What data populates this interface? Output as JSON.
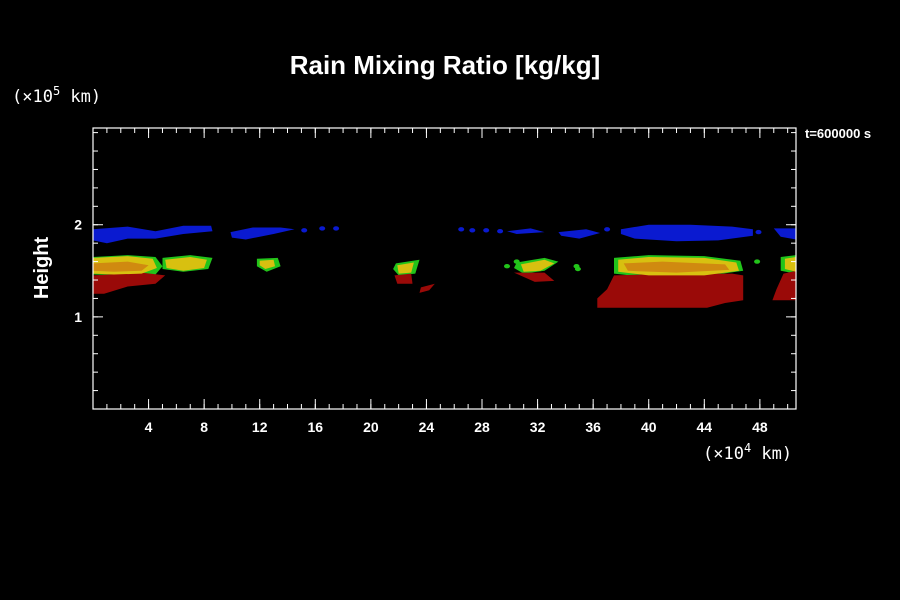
{
  "chart_data": {
    "type": "heatmap",
    "title": "Rain Mixing Ratio [kg/kg]",
    "time_label": "t=600000 s",
    "xlabel": "",
    "ylabel": "Height",
    "x_unit_label": "(×10",
    "x_unit_exp": "4",
    "x_unit_suffix": " km)",
    "y_unit_label": "(×10",
    "y_unit_exp": "5",
    "y_unit_suffix": " km)",
    "xlim": [
      0,
      50.6
    ],
    "ylim": [
      0,
      3.05
    ],
    "x_ticks": [
      4,
      8,
      12,
      16,
      20,
      24,
      28,
      32,
      36,
      40,
      44,
      48
    ],
    "y_ticks": [
      1,
      2
    ],
    "x_minor_step": 1,
    "y_minor_step": 0.2,
    "colors": {
      "blue": "#0a1ad0",
      "green": "#22c41a",
      "yellow": "#d8c010",
      "orange": "#d08a10",
      "red": "#9a0a08"
    },
    "regions": [
      {
        "level": "blue",
        "points": [
          [
            0.0,
            1.95
          ],
          [
            2.5,
            1.98
          ],
          [
            4.5,
            1.93
          ],
          [
            6.5,
            1.99
          ],
          [
            8.5,
            1.99
          ],
          [
            8.6,
            1.93
          ],
          [
            6.5,
            1.9
          ],
          [
            4.5,
            1.85
          ],
          [
            2.5,
            1.85
          ],
          [
            1.0,
            1.8
          ],
          [
            0.0,
            1.83
          ]
        ]
      },
      {
        "level": "blue",
        "points": [
          [
            9.9,
            1.92
          ],
          [
            11.5,
            1.97
          ],
          [
            13.5,
            1.97
          ],
          [
            14.5,
            1.95
          ],
          [
            13.0,
            1.9
          ],
          [
            11.0,
            1.84
          ],
          [
            10.0,
            1.86
          ]
        ]
      },
      {
        "level": "blue",
        "points": [
          [
            29.8,
            1.93
          ],
          [
            31.5,
            1.96
          ],
          [
            32.5,
            1.92
          ],
          [
            30.5,
            1.9
          ]
        ]
      },
      {
        "level": "blue",
        "points": [
          [
            33.5,
            1.92
          ],
          [
            35.5,
            1.95
          ],
          [
            36.5,
            1.91
          ],
          [
            35.0,
            1.85
          ],
          [
            33.7,
            1.88
          ]
        ]
      },
      {
        "level": "blue",
        "points": [
          [
            38.0,
            1.95
          ],
          [
            40.0,
            2.0
          ],
          [
            43.0,
            2.0
          ],
          [
            46.0,
            1.98
          ],
          [
            47.5,
            1.95
          ],
          [
            47.5,
            1.88
          ],
          [
            45.0,
            1.83
          ],
          [
            42.0,
            1.82
          ],
          [
            39.0,
            1.85
          ],
          [
            38.0,
            1.9
          ]
        ]
      },
      {
        "level": "blue",
        "points": [
          [
            49.0,
            1.96
          ],
          [
            50.6,
            1.96
          ],
          [
            50.6,
            1.84
          ],
          [
            49.5,
            1.87
          ]
        ]
      },
      {
        "level": "green",
        "points": [
          [
            0.0,
            1.65
          ],
          [
            2.5,
            1.67
          ],
          [
            4.5,
            1.65
          ],
          [
            5.0,
            1.55
          ],
          [
            4.5,
            1.46
          ],
          [
            2.0,
            1.45
          ],
          [
            0.0,
            1.46
          ]
        ]
      },
      {
        "level": "green",
        "points": [
          [
            5.0,
            1.64
          ],
          [
            7.0,
            1.67
          ],
          [
            8.6,
            1.64
          ],
          [
            8.3,
            1.52
          ],
          [
            6.5,
            1.49
          ],
          [
            5.0,
            1.52
          ]
        ]
      },
      {
        "level": "green",
        "points": [
          [
            11.8,
            1.63
          ],
          [
            13.3,
            1.64
          ],
          [
            13.5,
            1.55
          ],
          [
            12.5,
            1.49
          ],
          [
            11.8,
            1.55
          ]
        ]
      },
      {
        "level": "green",
        "points": [
          [
            21.8,
            1.58
          ],
          [
            23.5,
            1.62
          ],
          [
            23.2,
            1.47
          ],
          [
            22.0,
            1.45
          ],
          [
            21.6,
            1.52
          ]
        ]
      },
      {
        "level": "green",
        "points": [
          [
            30.5,
            1.59
          ],
          [
            32.5,
            1.64
          ],
          [
            33.5,
            1.6
          ],
          [
            32.5,
            1.5
          ],
          [
            31.0,
            1.47
          ],
          [
            30.3,
            1.53
          ]
        ]
      },
      {
        "level": "green",
        "points": [
          [
            37.5,
            1.64
          ],
          [
            40.0,
            1.67
          ],
          [
            44.0,
            1.66
          ],
          [
            46.6,
            1.61
          ],
          [
            46.8,
            1.5
          ],
          [
            44.0,
            1.44
          ],
          [
            40.0,
            1.43
          ],
          [
            37.5,
            1.47
          ]
        ]
      },
      {
        "level": "green",
        "points": [
          [
            49.5,
            1.65
          ],
          [
            50.6,
            1.67
          ],
          [
            50.6,
            1.47
          ],
          [
            49.5,
            1.5
          ]
        ]
      },
      {
        "level": "red",
        "points": [
          [
            0.0,
            1.45
          ],
          [
            3.5,
            1.48
          ],
          [
            5.2,
            1.45
          ],
          [
            4.5,
            1.36
          ],
          [
            2.5,
            1.33
          ],
          [
            0.8,
            1.25
          ],
          [
            0.0,
            1.25
          ]
        ]
      },
      {
        "level": "red",
        "points": [
          [
            21.7,
            1.45
          ],
          [
            22.9,
            1.47
          ],
          [
            23.0,
            1.36
          ],
          [
            21.9,
            1.36
          ]
        ]
      },
      {
        "level": "red",
        "points": [
          [
            23.6,
            1.32
          ],
          [
            24.6,
            1.36
          ],
          [
            24.2,
            1.29
          ],
          [
            23.5,
            1.26
          ]
        ]
      },
      {
        "level": "red",
        "points": [
          [
            30.3,
            1.48
          ],
          [
            32.5,
            1.48
          ],
          [
            33.2,
            1.39
          ],
          [
            31.8,
            1.38
          ]
        ]
      },
      {
        "level": "red",
        "points": [
          [
            37.5,
            1.45
          ],
          [
            42.0,
            1.47
          ],
          [
            46.0,
            1.47
          ],
          [
            46.8,
            1.45
          ],
          [
            46.8,
            1.18
          ],
          [
            45.5,
            1.15
          ],
          [
            44.2,
            1.1
          ],
          [
            38.0,
            1.1
          ],
          [
            36.3,
            1.1
          ],
          [
            36.3,
            1.2
          ],
          [
            37.0,
            1.3
          ]
        ]
      },
      {
        "level": "red",
        "points": [
          [
            49.7,
            1.47
          ],
          [
            50.6,
            1.5
          ],
          [
            50.6,
            1.18
          ],
          [
            48.9,
            1.18
          ],
          [
            49.2,
            1.3
          ]
        ]
      },
      {
        "level": "yellow",
        "points": [
          [
            0.0,
            1.64
          ],
          [
            2.5,
            1.66
          ],
          [
            4.3,
            1.63
          ],
          [
            4.6,
            1.53
          ],
          [
            3.5,
            1.47
          ],
          [
            1.5,
            1.46
          ],
          [
            0.0,
            1.47
          ]
        ]
      },
      {
        "level": "yellow",
        "points": [
          [
            5.2,
            1.62
          ],
          [
            7.0,
            1.65
          ],
          [
            8.2,
            1.62
          ],
          [
            8.0,
            1.53
          ],
          [
            6.5,
            1.5
          ],
          [
            5.3,
            1.53
          ]
        ]
      },
      {
        "level": "yellow",
        "points": [
          [
            12.0,
            1.61
          ],
          [
            13.0,
            1.62
          ],
          [
            13.1,
            1.55
          ],
          [
            12.4,
            1.52
          ],
          [
            12.0,
            1.56
          ]
        ]
      },
      {
        "level": "yellow",
        "points": [
          [
            21.9,
            1.56
          ],
          [
            23.1,
            1.59
          ],
          [
            22.9,
            1.48
          ],
          [
            22.0,
            1.47
          ]
        ]
      },
      {
        "level": "yellow",
        "points": [
          [
            30.8,
            1.57
          ],
          [
            32.5,
            1.62
          ],
          [
            33.2,
            1.58
          ],
          [
            32.2,
            1.5
          ],
          [
            31.0,
            1.49
          ]
        ]
      },
      {
        "level": "yellow",
        "points": [
          [
            37.8,
            1.62
          ],
          [
            40.0,
            1.65
          ],
          [
            44.0,
            1.64
          ],
          [
            46.3,
            1.59
          ],
          [
            46.5,
            1.5
          ],
          [
            44.0,
            1.45
          ],
          [
            40.0,
            1.45
          ],
          [
            37.8,
            1.49
          ]
        ]
      },
      {
        "level": "yellow",
        "points": [
          [
            49.8,
            1.63
          ],
          [
            50.6,
            1.65
          ],
          [
            50.6,
            1.49
          ],
          [
            49.8,
            1.52
          ]
        ]
      },
      {
        "level": "orange",
        "points": [
          [
            0.0,
            1.58
          ],
          [
            2.5,
            1.6
          ],
          [
            4.0,
            1.56
          ],
          [
            3.5,
            1.5
          ],
          [
            1.5,
            1.49
          ],
          [
            0.0,
            1.5
          ]
        ]
      },
      {
        "level": "orange",
        "points": [
          [
            38.2,
            1.58
          ],
          [
            41.0,
            1.6
          ],
          [
            45.5,
            1.57
          ],
          [
            45.8,
            1.51
          ],
          [
            42.0,
            1.48
          ],
          [
            38.5,
            1.5
          ]
        ]
      }
    ],
    "dots": [
      {
        "level": "blue",
        "points": [
          [
            15.2,
            1.94
          ],
          [
            16.5,
            1.96
          ],
          [
            17.5,
            1.96
          ],
          [
            26.5,
            1.95
          ],
          [
            27.3,
            1.94
          ],
          [
            28.3,
            1.94
          ],
          [
            29.3,
            1.93
          ],
          [
            37.0,
            1.95
          ],
          [
            47.9,
            1.92
          ]
        ]
      },
      {
        "level": "green",
        "points": [
          [
            29.8,
            1.55
          ],
          [
            30.5,
            1.6
          ],
          [
            34.8,
            1.55
          ],
          [
            34.9,
            1.52
          ],
          [
            47.8,
            1.6
          ]
        ]
      }
    ]
  }
}
